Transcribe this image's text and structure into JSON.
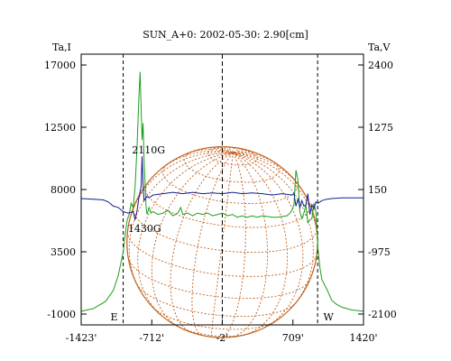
{
  "chart_data": {
    "type": "line",
    "title": "SUN_A+0: 2002-05-30: 2.90[cm]",
    "left_axis": {
      "label": "Ta,I",
      "ticks": [
        17000,
        12500,
        8000,
        3500,
        -1000
      ],
      "ylim": [
        -1000,
        17000
      ]
    },
    "right_axis": {
      "label": "Ta,V",
      "ticks": [
        "2400",
        "1275",
        "150",
        "-975",
        "-2100"
      ],
      "ylim": [
        -2100,
        2400
      ]
    },
    "x_axis": {
      "ticks": [
        "-1423'",
        "-712'",
        "-2'",
        "709'",
        "1420'"
      ],
      "tick_values": [
        -1423,
        -712,
        -2,
        709,
        1420
      ],
      "xlim": [
        -1423,
        1420
      ]
    },
    "limb_labels": {
      "east": "E",
      "west": "W"
    },
    "limb_marks": [
      -1000,
      958
    ],
    "center_mark": -2,
    "annotations": [
      {
        "text": "2110G",
        "x": -745,
        "y": 10600
      },
      {
        "text": "1430G",
        "x": -785,
        "y": 4950
      }
    ],
    "disk": {
      "center": [
        -2,
        4200
      ],
      "radius_arcmin": 960,
      "color": "#c0601e"
    },
    "series": [
      {
        "axis": "left",
        "color": "#1e9e1e",
        "x": [
          -1423,
          -1300,
          -1180,
          -1100,
          -1050,
          -1000,
          -980,
          -960,
          -940,
          -920,
          -900,
          -880,
          -860,
          -840,
          -830,
          -820,
          -810,
          -800,
          -790,
          -780,
          -770,
          -760,
          -740,
          -720,
          -700,
          -650,
          -600,
          -550,
          -500,
          -450,
          -420,
          -400,
          -350,
          -300,
          -250,
          -200,
          -150,
          -100,
          -50,
          0,
          50,
          100,
          150,
          200,
          250,
          300,
          350,
          400,
          450,
          500,
          550,
          600,
          650,
          680,
          700,
          720,
          740,
          760,
          780,
          800,
          820,
          840,
          860,
          880,
          900,
          920,
          940,
          960,
          980,
          1000,
          1050,
          1100,
          1150,
          1200,
          1300,
          1420
        ],
        "y": [
          -800,
          -600,
          -100,
          700,
          1800,
          3500,
          4800,
          5800,
          6200,
          7000,
          6700,
          8200,
          11200,
          15000,
          16500,
          14000,
          11600,
          12800,
          10200,
          8500,
          6800,
          6200,
          6700,
          6300,
          6400,
          6200,
          6300,
          6500,
          6100,
          6300,
          6700,
          6200,
          6300,
          6100,
          6300,
          6200,
          6300,
          6100,
          6200,
          6300,
          6100,
          6200,
          6000,
          6100,
          6000,
          6100,
          6000,
          6100,
          6050,
          6000,
          6000,
          6050,
          6100,
          6300,
          6500,
          6900,
          9400,
          8700,
          6400,
          5900,
          6300,
          6900,
          5600,
          5800,
          5900,
          7000,
          6400,
          3800,
          2400,
          1500,
          800,
          0,
          -300,
          -500,
          -700,
          -800
        ]
      },
      {
        "axis": "left",
        "color": "#102090",
        "x": [
          -1423,
          -1300,
          -1200,
          -1150,
          -1100,
          -1050,
          -1000,
          -950,
          -900,
          -880,
          -860,
          -840,
          -820,
          -810,
          -800,
          -790,
          -780,
          -760,
          -740,
          -720,
          -700,
          -600,
          -500,
          -400,
          -300,
          -200,
          -100,
          0,
          100,
          200,
          300,
          400,
          500,
          600,
          650,
          700,
          720,
          740,
          760,
          780,
          800,
          820,
          840,
          860,
          880,
          900,
          920,
          940,
          960,
          1000,
          1050,
          1100,
          1200,
          1300,
          1420
        ],
        "y": [
          7350,
          7300,
          7250,
          7100,
          6800,
          6700,
          6400,
          6300,
          6400,
          5800,
          6500,
          7500,
          8200,
          10400,
          8400,
          7200,
          7300,
          7500,
          7400,
          7500,
          7600,
          7700,
          7800,
          7700,
          7800,
          7700,
          7750,
          7700,
          7800,
          7700,
          7750,
          7700,
          7600,
          7700,
          7650,
          7600,
          7700,
          6800,
          7300,
          6700,
          7200,
          6800,
          6900,
          7700,
          6200,
          6900,
          6600,
          7100,
          7000,
          7200,
          7300,
          7350,
          7400,
          7400,
          7400
        ]
      }
    ]
  }
}
